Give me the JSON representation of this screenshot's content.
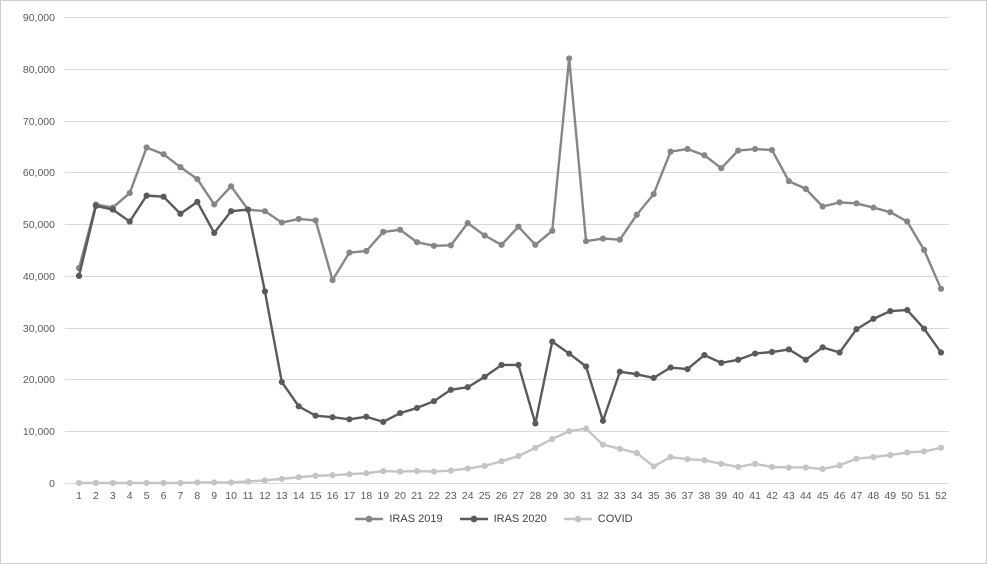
{
  "chart": {
    "background_color": "#ffffff",
    "border_color": "#cfcfcf"
  },
  "chart_data": {
    "type": "line",
    "title": "",
    "xlabel": "",
    "ylabel": "",
    "grid": true,
    "grid_color": "#d9d9d9",
    "axis_label_color": "#595959",
    "legend_position": "bottom",
    "ylim": [
      0,
      90000
    ],
    "y_ticks": [
      {
        "value": 0,
        "label": "0"
      },
      {
        "value": 10000,
        "label": "10,000"
      },
      {
        "value": 20000,
        "label": "20,000"
      },
      {
        "value": 30000,
        "label": "30,000"
      },
      {
        "value": 40000,
        "label": "40,000"
      },
      {
        "value": 50000,
        "label": "50,000"
      },
      {
        "value": 60000,
        "label": "60,000"
      },
      {
        "value": 70000,
        "label": "70,000"
      },
      {
        "value": 80000,
        "label": "80,000"
      },
      {
        "value": 90000,
        "label": "90,000"
      }
    ],
    "categories": [
      1,
      2,
      3,
      4,
      5,
      6,
      7,
      8,
      9,
      10,
      11,
      12,
      13,
      14,
      15,
      16,
      17,
      18,
      19,
      20,
      21,
      22,
      23,
      24,
      25,
      26,
      27,
      28,
      29,
      30,
      31,
      32,
      33,
      34,
      35,
      36,
      37,
      38,
      39,
      40,
      41,
      42,
      43,
      44,
      45,
      46,
      47,
      48,
      49,
      50,
      51,
      52
    ],
    "series": [
      {
        "name": "IRAS 2019",
        "color": "#868686",
        "values": [
          41500,
          53800,
          53200,
          56000,
          64800,
          63500,
          61000,
          58700,
          53800,
          57300,
          52800,
          52500,
          50300,
          51000,
          50700,
          39200,
          44500,
          44800,
          48500,
          48900,
          46500,
          45800,
          45900,
          50200,
          47800,
          46000,
          49500,
          46000,
          48700,
          82000,
          46700,
          47200,
          47000,
          51800,
          55800,
          64000,
          64500,
          63300,
          60800,
          64200,
          64500,
          64300,
          58300,
          56800,
          53400,
          54200,
          54000,
          53200,
          52300,
          50500,
          45000,
          37500
        ]
      },
      {
        "name": "IRAS 2020",
        "color": "#5a5a5a",
        "values": [
          40000,
          53500,
          52800,
          50500,
          55500,
          55300,
          52000,
          54300,
          48300,
          52500,
          52800,
          37000,
          19500,
          14800,
          13000,
          12700,
          12300,
          12800,
          11800,
          13500,
          14500,
          15800,
          18000,
          18500,
          20500,
          22800,
          22800,
          11500,
          27300,
          25000,
          22500,
          12000,
          21500,
          21000,
          20300,
          22300,
          22000,
          24700,
          23200,
          23800,
          25000,
          25300,
          25800,
          23800,
          26200,
          25200,
          29700,
          31700,
          33200,
          33400,
          29800,
          25200
        ]
      },
      {
        "name": "COVID",
        "color": "#c4c4c4",
        "values": [
          0,
          0,
          0,
          0,
          0,
          0,
          0,
          100,
          100,
          100,
          300,
          500,
          800,
          1100,
          1400,
          1500,
          1700,
          1900,
          2300,
          2200,
          2300,
          2200,
          2400,
          2800,
          3300,
          4200,
          5200,
          6800,
          8500,
          10000,
          10500,
          7400,
          6600,
          5800,
          3200,
          5000,
          4600,
          4400,
          3700,
          3100,
          3700,
          3100,
          3000,
          3000,
          2700,
          3400,
          4700,
          5000,
          5400,
          5900,
          6100,
          6800
        ]
      }
    ]
  }
}
